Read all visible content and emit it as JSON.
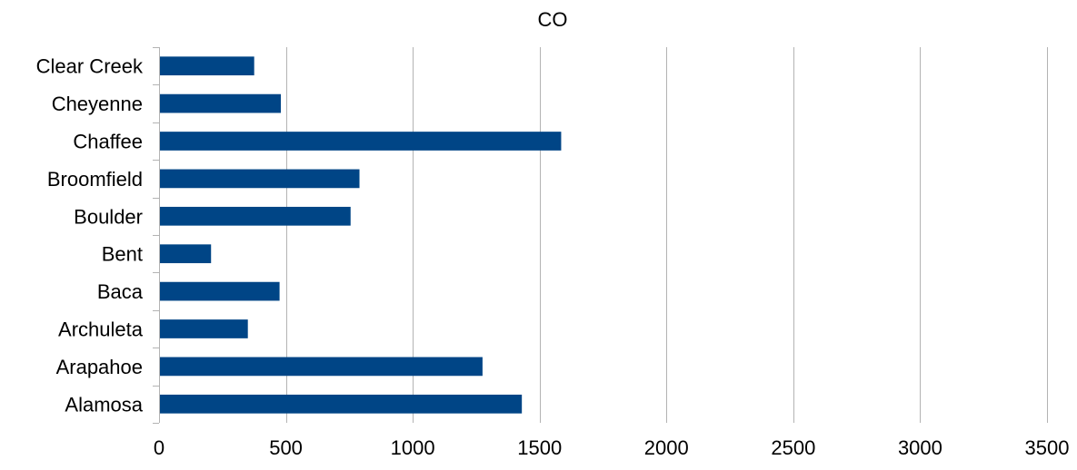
{
  "chart_data": {
    "type": "bar",
    "orientation": "horizontal",
    "title": "CO",
    "xlabel": "",
    "ylabel": "",
    "categories": [
      "Alamosa",
      "Arapahoe",
      "Archuleta",
      "Baca",
      "Bent",
      "Boulder",
      "Broomfield",
      "Chaffee",
      "Cheyenne",
      "Clear Creek"
    ],
    "values": [
      1430,
      1275,
      350,
      475,
      205,
      755,
      790,
      1585,
      480,
      375
    ],
    "xlim": [
      0,
      3500
    ],
    "xticks": [
      0,
      500,
      1000,
      1500,
      2000,
      2500,
      3000,
      3500
    ],
    "grid": true,
    "legend": "none",
    "bar_color": "#004586"
  }
}
